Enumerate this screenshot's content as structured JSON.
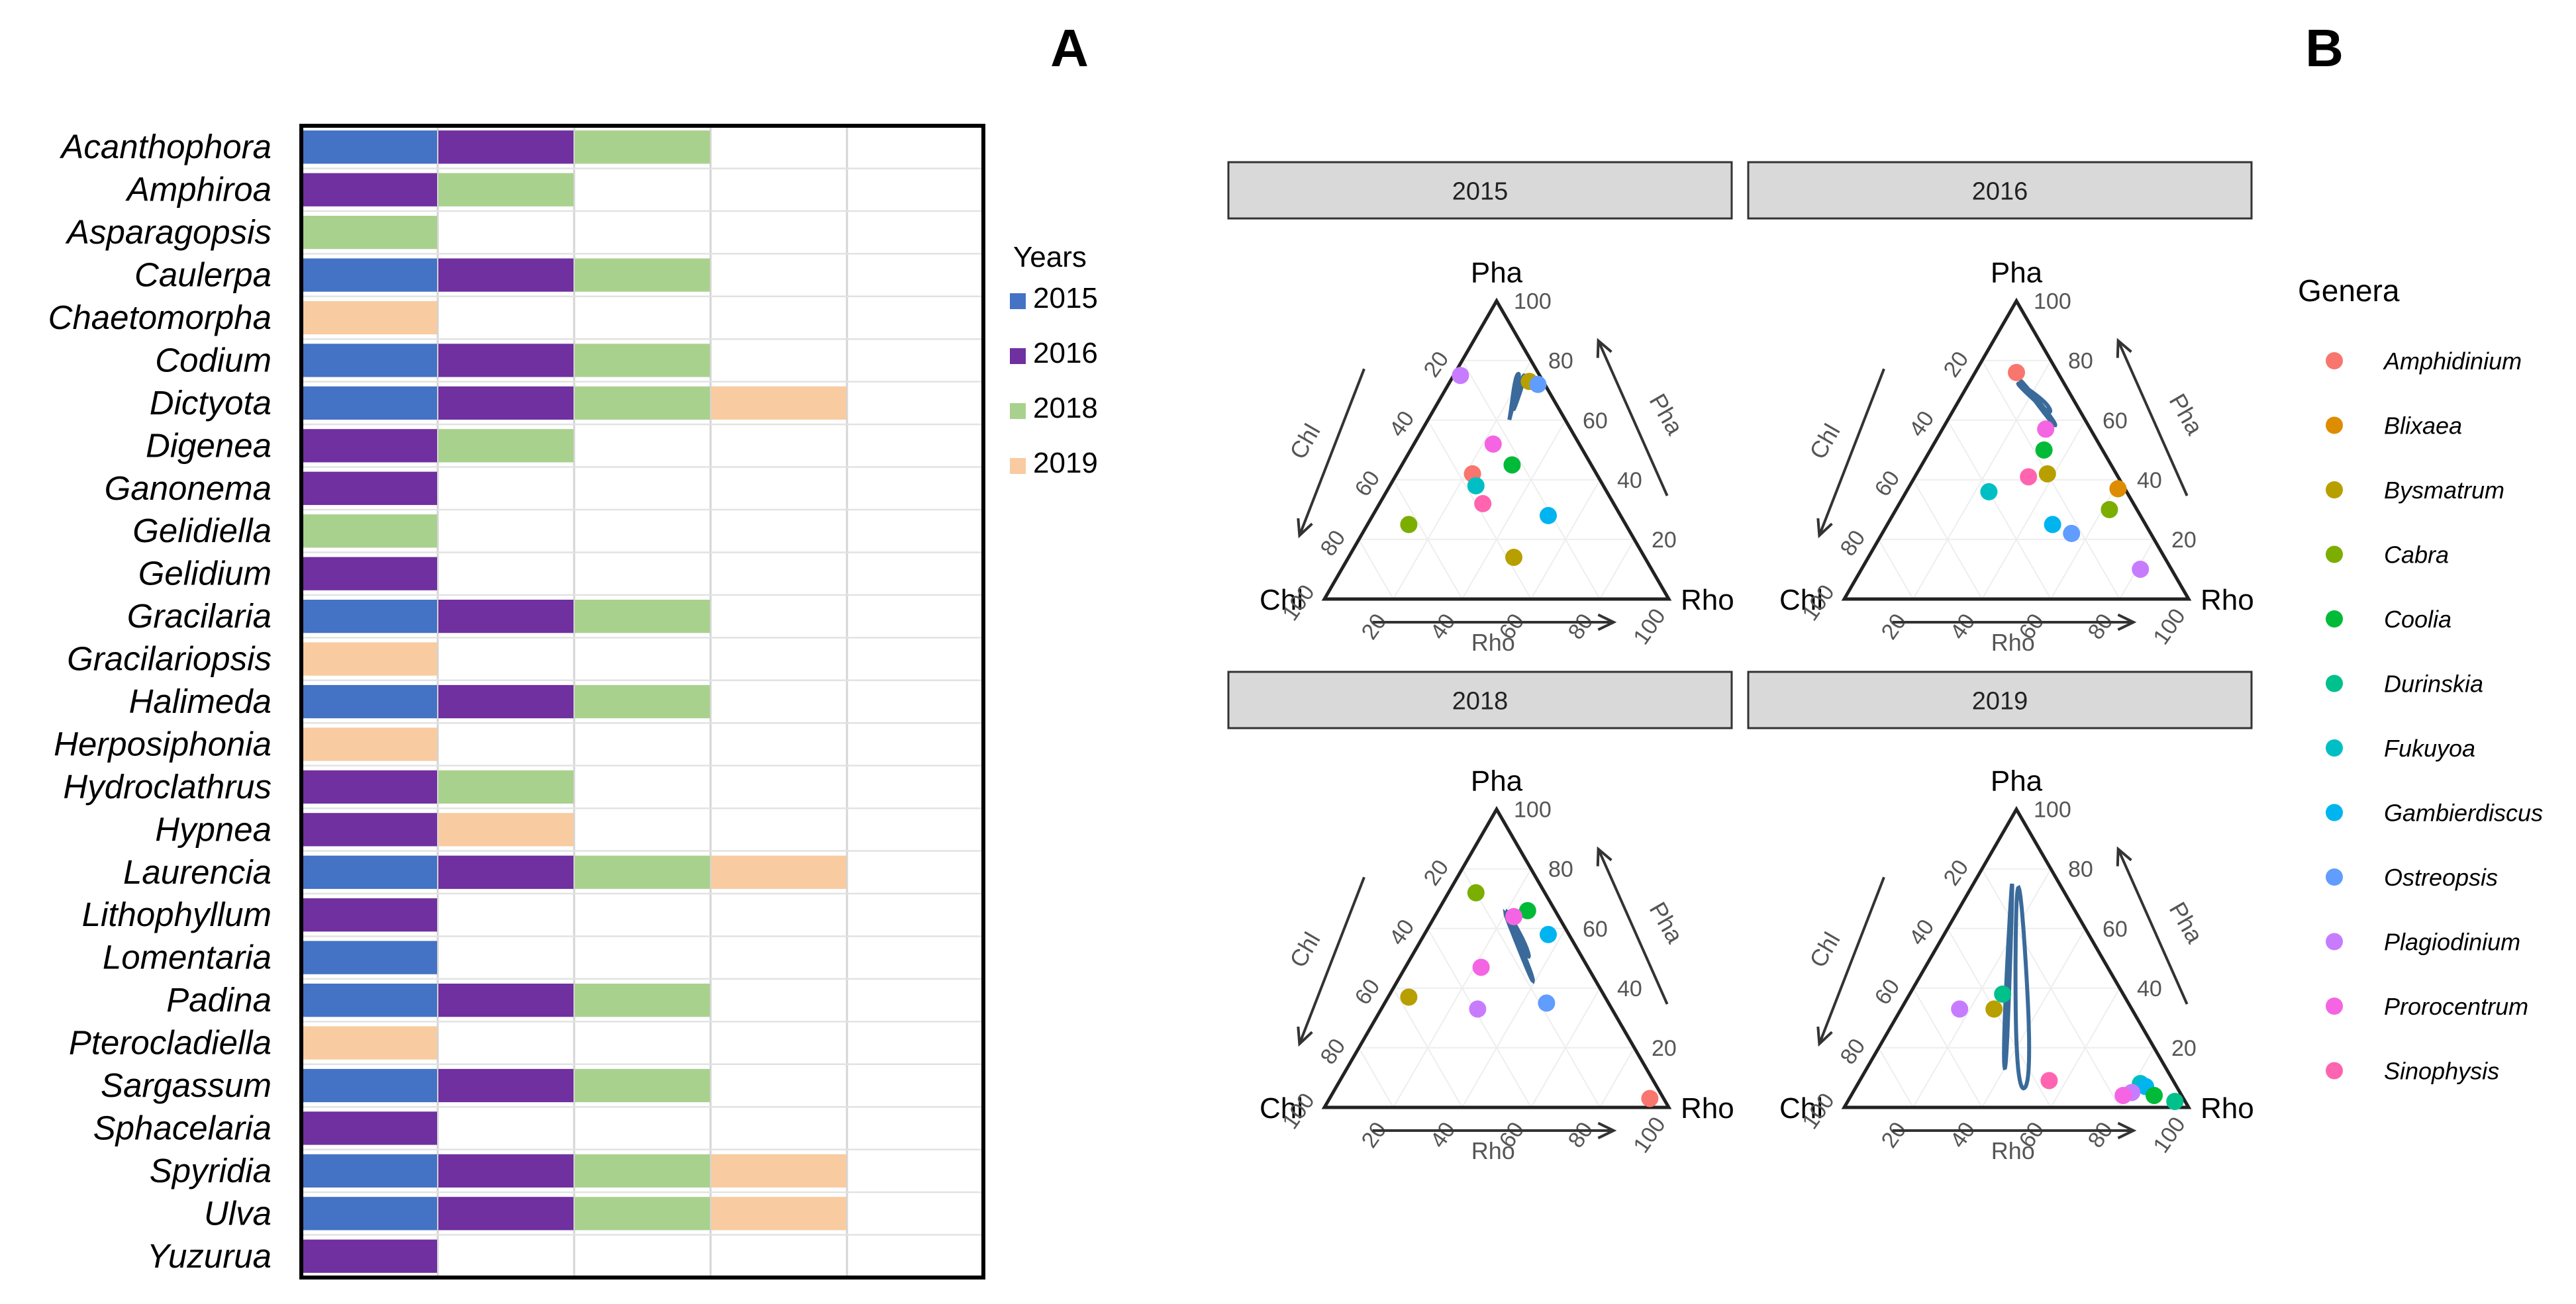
{
  "panel_labels": {
    "a": "A",
    "b": "B"
  },
  "colors": {
    "2015": "#4472C4",
    "2016": "#7030A0",
    "2018": "#A9D18E",
    "2019": "#F8CBA0",
    "contour": "#3A6A9A",
    "strip_fill": "#D9D9D9"
  },
  "chart_data": [
    {
      "type": "bar",
      "panel": "A",
      "legend_title": "Years",
      "legend_placement": "right",
      "series_order": [
        "2015",
        "2016",
        "2018",
        "2019"
      ],
      "categories": [
        "Acanthophora",
        "Amphiroa",
        "Asparagopsis",
        "Caulerpa",
        "Chaetomorpha",
        "Codium",
        "Dictyota",
        "Digenea",
        "Ganonema",
        "Gelidiella",
        "Gelidium",
        "Gracilaria",
        "Gracilariopsis",
        "Halimeda",
        "Herposiphonia",
        "Hydroclathrus",
        "Hypnea",
        "Laurencia",
        "Lithophyllum",
        "Lomentaria",
        "Padina",
        "Pterocladiella",
        "Sargassum",
        "Sphacelaria",
        "Spyridia",
        "Ulva",
        "Yuzurua"
      ],
      "years_present": [
        [
          "2015",
          "2016",
          "2018"
        ],
        [
          "2016",
          "2018"
        ],
        [
          "2018"
        ],
        [
          "2015",
          "2016",
          "2018"
        ],
        [
          "2019"
        ],
        [
          "2015",
          "2016",
          "2018"
        ],
        [
          "2015",
          "2016",
          "2018",
          "2019"
        ],
        [
          "2016",
          "2018"
        ],
        [
          "2016"
        ],
        [
          "2018"
        ],
        [
          "2016"
        ],
        [
          "2015",
          "2016",
          "2018"
        ],
        [
          "2019"
        ],
        [
          "2015",
          "2016",
          "2018"
        ],
        [
          "2019"
        ],
        [
          "2016",
          "2018"
        ],
        [
          "2016",
          "2019"
        ],
        [
          "2015",
          "2016",
          "2018",
          "2019"
        ],
        [
          "2016"
        ],
        [
          "2015"
        ],
        [
          "2015",
          "2016",
          "2018"
        ],
        [
          "2019"
        ],
        [
          "2015",
          "2016",
          "2018"
        ],
        [
          "2016"
        ],
        [
          "2015",
          "2016",
          "2018",
          "2019"
        ],
        [
          "2015",
          "2016",
          "2018",
          "2019"
        ],
        [
          "2016"
        ]
      ],
      "xlim": [
        0,
        5
      ],
      "grid": true
    },
    {
      "type": "scatter",
      "panel": "B",
      "subtype": "ternary",
      "axes": {
        "top": "Pha",
        "left": "Chl",
        "right": "Rho"
      },
      "axis_arrow_labels": {
        "left": "Chl",
        "right": "Pha",
        "bottom": "Rho"
      },
      "ticks": [
        20,
        40,
        60,
        80,
        100
      ],
      "legend_title": "Genera",
      "legend_placement": "right",
      "genera": [
        {
          "name": "Amphidinium",
          "color": "#F8766D"
        },
        {
          "name": "Blixaea",
          "color": "#DE8C00"
        },
        {
          "name": "Bysmatrum",
          "color": "#B79F00"
        },
        {
          "name": "Cabra",
          "color": "#7CAE00"
        },
        {
          "name": "Coolia",
          "color": "#00BA38"
        },
        {
          "name": "Durinskia",
          "color": "#00C08B"
        },
        {
          "name": "Fukuyoa",
          "color": "#00BFC4"
        },
        {
          "name": "Gambierdiscus",
          "color": "#00B4F0"
        },
        {
          "name": "Ostreopsis",
          "color": "#619CFF"
        },
        {
          "name": "Plagiodinium",
          "color": "#C77CFF"
        },
        {
          "name": "Prorocentrum",
          "color": "#F564E3"
        },
        {
          "name": "Sinophysis",
          "color": "#FF64B0"
        }
      ],
      "facets": [
        {
          "strip": "2015",
          "points": [
            {
              "genus": "Plagiodinium",
              "pha": 75,
              "rho": 2
            },
            {
              "genus": "Bysmatrum",
              "pha": 73,
              "rho": 23
            },
            {
              "genus": "Ostreopsis",
              "pha": 72,
              "rho": 26
            },
            {
              "genus": "Prorocentrum",
              "pha": 52,
              "rho": 23
            },
            {
              "genus": "Coolia",
              "pha": 45,
              "rho": 32
            },
            {
              "genus": "Amphidinium",
              "pha": 42,
              "rho": 22
            },
            {
              "genus": "Fukuyoa",
              "pha": 38,
              "rho": 25
            },
            {
              "genus": "Sinophysis",
              "pha": 32,
              "rho": 30
            },
            {
              "genus": "Gambierdiscus",
              "pha": 28,
              "rho": 51
            },
            {
              "genus": "Cabra",
              "pha": 25,
              "rho": 12
            },
            {
              "genus": "Bysmatrum",
              "pha": 14,
              "rho": 48
            }
          ],
          "contours": [
            [
              [
                24,
                60,
                16
              ],
              [
                20,
                75,
                5
              ],
              [
                21,
                75,
                4
              ],
              [
                24,
                60,
                16
              ]
            ],
            [
              [
                24,
                59,
                17
              ],
              [
                23,
                62,
                15
              ],
              [
                18,
                75,
                7
              ],
              [
                19,
                76,
                5
              ],
              [
                24,
                59,
                17
              ]
            ]
          ]
        },
        {
          "strip": "2016",
          "points": [
            {
              "genus": "Amphidinium",
              "pha": 76,
              "rho": 12
            },
            {
              "genus": "Prorocentrum",
              "pha": 57,
              "rho": 30
            },
            {
              "genus": "Coolia",
              "pha": 50,
              "rho": 33
            },
            {
              "genus": "Bysmatrum",
              "pha": 42,
              "rho": 38
            },
            {
              "genus": "Sinophysis",
              "pha": 41,
              "rho": 33
            },
            {
              "genus": "Blixaea",
              "pha": 37,
              "rho": 61
            },
            {
              "genus": "Fukuyoa",
              "pha": 36,
              "rho": 24
            },
            {
              "genus": "Cabra",
              "pha": 30,
              "rho": 62
            },
            {
              "genus": "Gambierdiscus",
              "pha": 25,
              "rho": 48
            },
            {
              "genus": "Ostreopsis",
              "pha": 22,
              "rho": 55
            },
            {
              "genus": "Plagiodinium",
              "pha": 10,
              "rho": 81
            }
          ],
          "contours": [
            [
              [
                30,
                61,
                9
              ],
              [
                26,
                66,
                8
              ],
              [
                10,
                75,
                15
              ],
              [
                30,
                61,
                9
              ]
            ],
            [
              [
                31,
                60,
                9
              ],
              [
                9,
                78,
                13
              ],
              [
                33,
                57,
                10
              ],
              [
                31,
                60,
                9
              ]
            ]
          ]
        },
        {
          "strip": "2018",
          "points": [
            {
              "genus": "Cabra",
              "pha": 72,
              "rho": 8
            },
            {
              "genus": "Coolia",
              "pha": 66,
              "rho": 26
            },
            {
              "genus": "Prorocentrum",
              "pha": 64,
              "rho": 23
            },
            {
              "genus": "Gambierdiscus",
              "pha": 58,
              "rho": 36
            },
            {
              "genus": "Prorocentrum",
              "pha": 47,
              "rho": 22
            },
            {
              "genus": "Bysmatrum",
              "pha": 37,
              "rho": 6
            },
            {
              "genus": "Ostreopsis",
              "pha": 35,
              "rho": 47
            },
            {
              "genus": "Plagiodinium",
              "pha": 33,
              "rho": 28
            },
            {
              "genus": "Amphidinium",
              "pha": 3,
              "rho": 93
            }
          ],
          "contours": [
            [
              [
                36,
                48,
                16
              ],
              [
                31,
                55,
                14
              ],
              [
                16,
                70,
                14
              ],
              [
                36,
                48,
                16
              ]
            ],
            [
              [
                37,
                46,
                17
              ],
              [
                14,
                72,
                14
              ],
              [
                41,
                40,
                19
              ],
              [
                37,
                46,
                17
              ]
            ]
          ]
        },
        {
          "strip": "2019",
          "points": [
            {
              "genus": "Durinskia",
              "pha": 38,
              "rho": 27
            },
            {
              "genus": "Plagiodinium",
              "pha": 33,
              "rho": 17
            },
            {
              "genus": "Bysmatrum",
              "pha": 33,
              "rho": 27
            },
            {
              "genus": "Sinophysis",
              "pha": 9,
              "rho": 55
            },
            {
              "genus": "Fukuyoa",
              "pha": 8,
              "rho": 82
            },
            {
              "genus": "Gambierdiscus",
              "pha": 7,
              "rho": 84
            },
            {
              "genus": "Plagiodinium",
              "pha": 5,
              "rho": 81
            },
            {
              "genus": "Prorocentrum",
              "pha": 4,
              "rho": 79
            },
            {
              "genus": "Coolia",
              "pha": 4,
              "rho": 88
            },
            {
              "genus": "Durinskia",
              "pha": 2,
              "rho": 95
            }
          ],
          "contours": [
            [
              [
                43,
                8,
                49
              ],
              [
                36,
                20,
                44
              ],
              [
                2,
                95,
                3
              ],
              [
                43,
                8,
                49
              ]
            ],
            [
              [
                47,
                5,
                48
              ],
              [
                2,
                96,
                2
              ],
              [
                51,
                8,
                41
              ],
              [
                47,
                5,
                48
              ]
            ]
          ]
        }
      ]
    }
  ]
}
